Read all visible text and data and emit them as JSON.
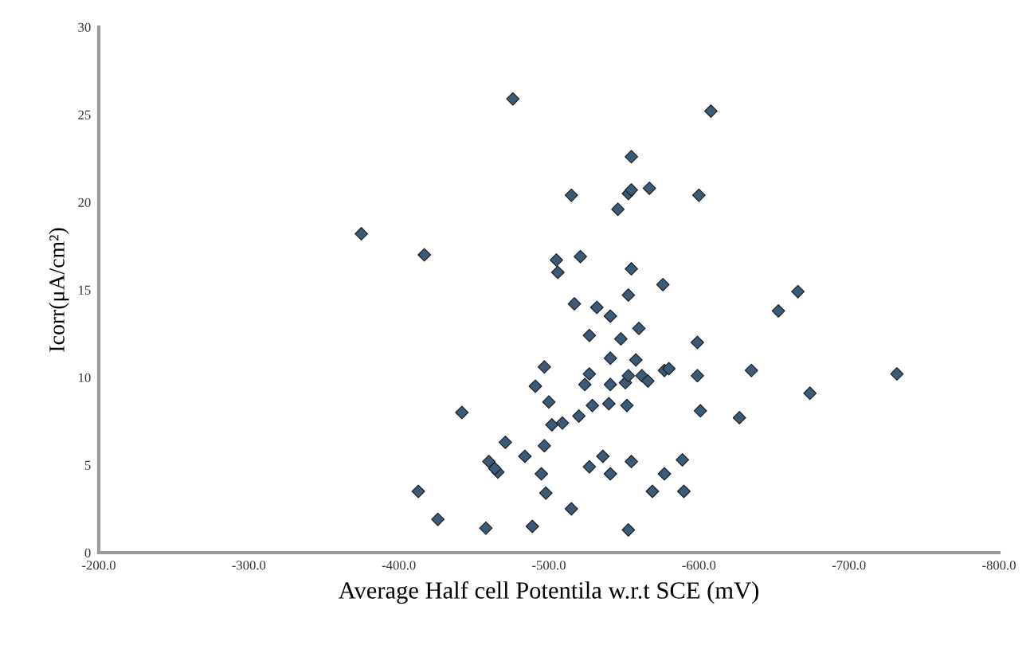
{
  "chart_data": {
    "type": "scatter",
    "xlabel": "Average Half cell Potentila w.r.t SCE (mV)",
    "ylabel": "Icorr(μA/cm²)",
    "xlim": [
      -200,
      -800
    ],
    "xticks": [
      {
        "value": -200,
        "label": "-200.0"
      },
      {
        "value": -300,
        "label": "-300.0"
      },
      {
        "value": -400,
        "label": "-400.0"
      },
      {
        "value": -500,
        "label": "-500.0"
      },
      {
        "value": -600,
        "label": "-600.0"
      },
      {
        "value": -700,
        "label": "-700.0"
      },
      {
        "value": -800,
        "label": "-800.0"
      }
    ],
    "ylim": [
      0,
      30
    ],
    "yticks": [
      0,
      5,
      10,
      15,
      20,
      25,
      30
    ],
    "grid": false,
    "marker": "diamond",
    "series": [
      {
        "color": "#3a5a78",
        "x": [
          -476,
          -608,
          -375,
          -417,
          -515,
          -553,
          -555,
          -567,
          -600,
          -555,
          -546,
          -505,
          -506,
          -521,
          -555,
          -517,
          -532,
          -541,
          -553,
          -576,
          -666,
          -653,
          -527,
          -548,
          -560,
          -599,
          -541,
          -558,
          -497,
          -527,
          -524,
          -541,
          -551,
          -553,
          -562,
          -566,
          -577,
          -580,
          -599,
          -635,
          -732,
          -491,
          -500,
          -529,
          -540,
          -552,
          -520,
          -509,
          -502,
          -601,
          -627,
          -674,
          -497,
          -484,
          -536,
          -527,
          -555,
          -589,
          -495,
          -541,
          -577,
          -498,
          -569,
          -590,
          -515,
          -489,
          -553,
          -442,
          -471,
          -460,
          -466,
          -464,
          -413,
          -426,
          -458
        ],
        "values": [
          25.9,
          25.2,
          18.2,
          17.0,
          20.4,
          20.5,
          22.6,
          20.8,
          20.4,
          20.7,
          19.6,
          16.7,
          16.0,
          16.9,
          16.2,
          14.2,
          14.0,
          13.5,
          14.7,
          15.3,
          14.9,
          13.8,
          12.4,
          12.2,
          12.8,
          12.0,
          11.1,
          11.0,
          10.6,
          10.2,
          9.6,
          9.6,
          9.7,
          10.1,
          10.1,
          9.8,
          10.4,
          10.5,
          10.1,
          10.4,
          10.2,
          9.5,
          8.6,
          8.4,
          8.5,
          8.4,
          7.8,
          7.4,
          7.3,
          8.1,
          7.7,
          9.1,
          6.1,
          5.5,
          5.5,
          4.9,
          5.2,
          5.3,
          4.5,
          4.5,
          4.5,
          3.4,
          3.5,
          3.5,
          2.5,
          1.5,
          1.3,
          8.0,
          6.3,
          5.2,
          4.6,
          4.8,
          3.5,
          1.9,
          1.4
        ]
      }
    ]
  }
}
